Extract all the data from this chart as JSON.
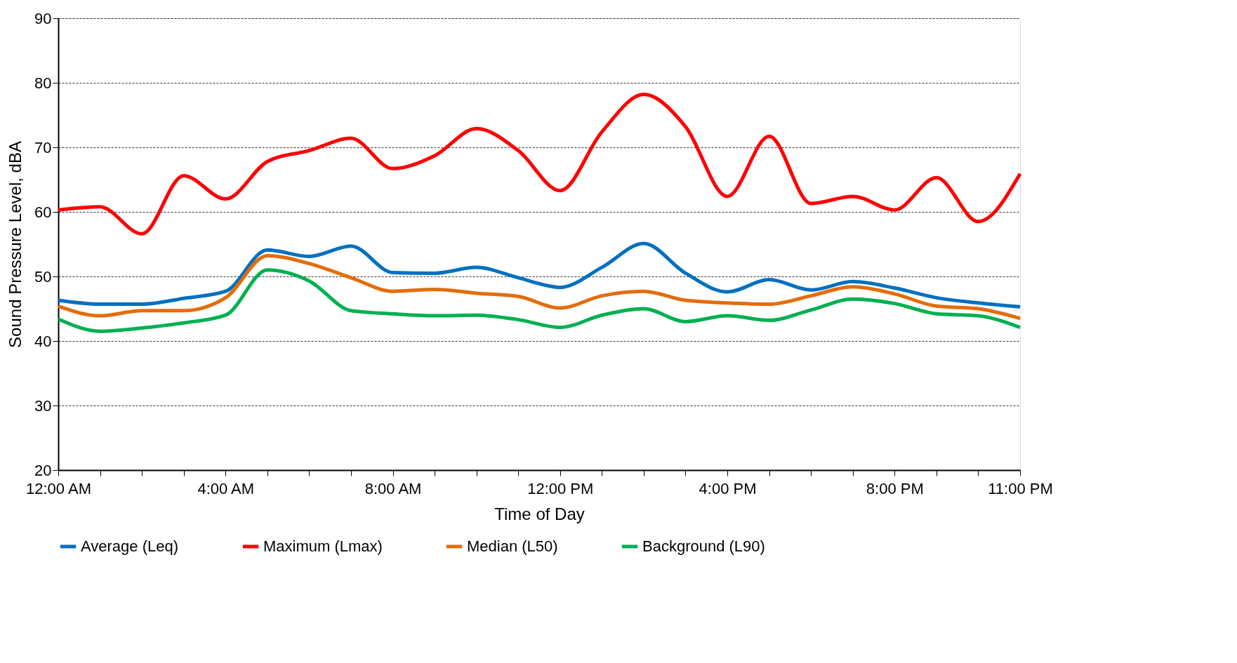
{
  "chart_data": {
    "type": "line",
    "xlabel": "Time of Day",
    "ylabel": "Sound Pressure Level, dBA",
    "x": [
      0,
      1,
      2,
      3,
      4,
      5,
      6,
      7,
      8,
      9,
      10,
      11,
      12,
      13,
      14,
      15,
      16,
      17,
      18,
      19,
      20,
      21,
      22,
      23
    ],
    "series": [
      {
        "name": "Average (Leq)",
        "color": "#0070c0",
        "values": [
          46.3,
          45.7,
          45.7,
          46.6,
          47.7,
          54.1,
          53.1,
          54.7,
          50.6,
          50.5,
          51.4,
          49.8,
          48.3,
          51.4,
          55.1,
          50.5,
          47.6,
          49.5,
          47.9,
          49.2,
          48.2,
          46.7,
          45.9,
          45.3
        ]
      },
      {
        "name": "Maximum (Lmax)",
        "color": "#ff0000",
        "values": [
          60.3,
          60.8,
          56.6,
          65.6,
          62.0,
          67.8,
          69.5,
          71.4,
          66.7,
          68.7,
          72.9,
          69.5,
          63.3,
          72.4,
          78.2,
          73.2,
          62.4,
          71.7,
          61.3,
          62.4,
          60.3,
          65.3,
          58.5,
          65.9
        ]
      },
      {
        "name": "Median (L50)",
        "color": "#e46c0a",
        "values": [
          45.4,
          43.9,
          44.7,
          44.7,
          46.7,
          53.2,
          52.0,
          49.8,
          47.7,
          48.0,
          47.4,
          46.9,
          45.1,
          47.0,
          47.7,
          46.3,
          45.9,
          45.7,
          47.0,
          48.4,
          47.3,
          45.4,
          45.0,
          43.5
        ]
      },
      {
        "name": "Background (L90)",
        "color": "#00b050",
        "values": [
          43.4,
          41.5,
          42.0,
          42.8,
          44.0,
          51.0,
          49.3,
          44.7,
          44.2,
          43.9,
          44.0,
          43.3,
          42.1,
          44.0,
          45.0,
          43.0,
          43.9,
          43.2,
          44.8,
          46.5,
          45.8,
          44.2,
          43.9,
          42.1
        ]
      }
    ],
    "xlim": [
      0,
      23
    ],
    "xticks": [
      {
        "value": 0,
        "label": "12:00 AM"
      },
      {
        "value": 1,
        "label": null
      },
      {
        "value": 2,
        "label": null
      },
      {
        "value": 3,
        "label": null
      },
      {
        "value": 4,
        "label": "4:00 AM"
      },
      {
        "value": 5,
        "label": null
      },
      {
        "value": 6,
        "label": null
      },
      {
        "value": 7,
        "label": null
      },
      {
        "value": 8,
        "label": "8:00 AM"
      },
      {
        "value": 9,
        "label": null
      },
      {
        "value": 10,
        "label": null
      },
      {
        "value": 11,
        "label": null
      },
      {
        "value": 12,
        "label": "12:00 PM"
      },
      {
        "value": 13,
        "label": null
      },
      {
        "value": 14,
        "label": null
      },
      {
        "value": 15,
        "label": null
      },
      {
        "value": 16,
        "label": "4:00 PM"
      },
      {
        "value": 17,
        "label": null
      },
      {
        "value": 18,
        "label": null
      },
      {
        "value": 19,
        "label": null
      },
      {
        "value": 20,
        "label": "8:00 PM"
      },
      {
        "value": 21,
        "label": null
      },
      {
        "value": 22,
        "label": null
      },
      {
        "value": 23,
        "label": "11:00 PM"
      }
    ],
    "ylim": [
      20,
      90
    ],
    "yticks": [
      20,
      30,
      40,
      50,
      60,
      70,
      80,
      90
    ],
    "grid": "y",
    "legend": "bottom",
    "marker": "none",
    "line_style": "solid"
  }
}
